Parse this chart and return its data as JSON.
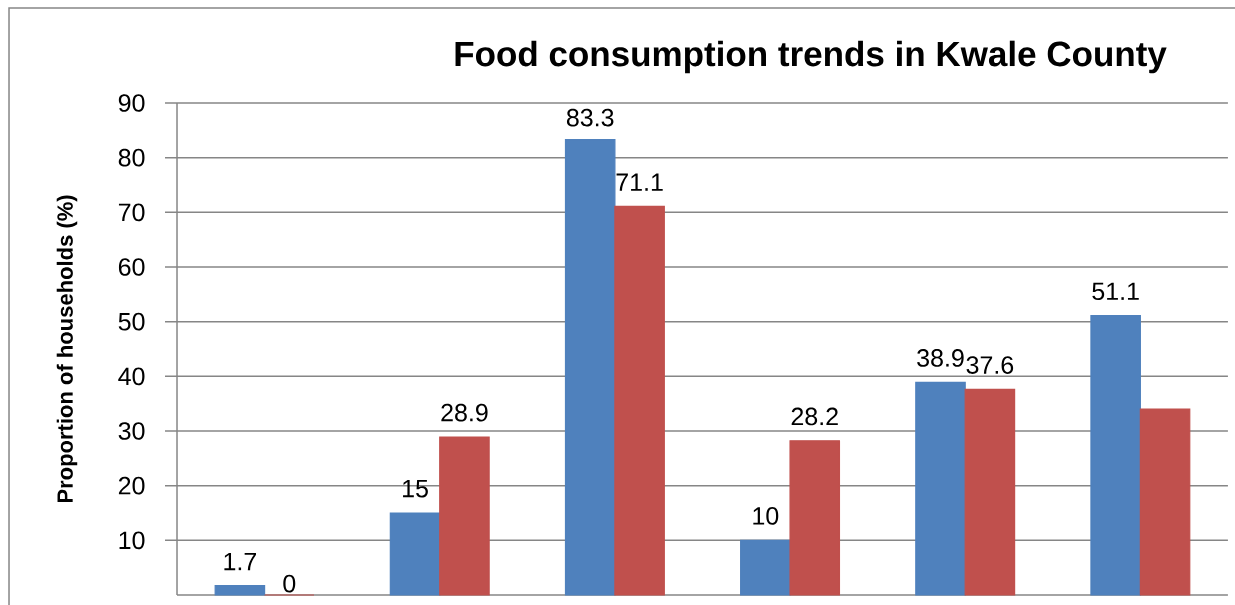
{
  "chart_data": {
    "type": "bar",
    "title": "Food consumption trends in Kwale County",
    "ylabel": "Proportion of households (%)",
    "categories": [
      null,
      null,
      null,
      null,
      null,
      null
    ],
    "series": [
      {
        "color": "#4f81bd",
        "values": [
          1.7,
          15,
          83.3,
          10,
          38.9,
          51.1
        ],
        "value_labels": [
          "1.7",
          "15",
          "83.3",
          "10",
          "38.9",
          "51.1"
        ]
      },
      {
        "color": "#c0504d",
        "values": [
          0,
          28.9,
          71.1,
          28.2,
          37.6,
          34
        ],
        "value_labels": [
          "0",
          "28.9",
          "71.1",
          "28.2",
          "37.6",
          null
        ]
      }
    ],
    "ylim": [
      0,
      90
    ],
    "yticks": [
      10,
      20,
      30,
      40,
      50,
      60,
      70,
      80,
      90
    ],
    "grid": "y"
  }
}
